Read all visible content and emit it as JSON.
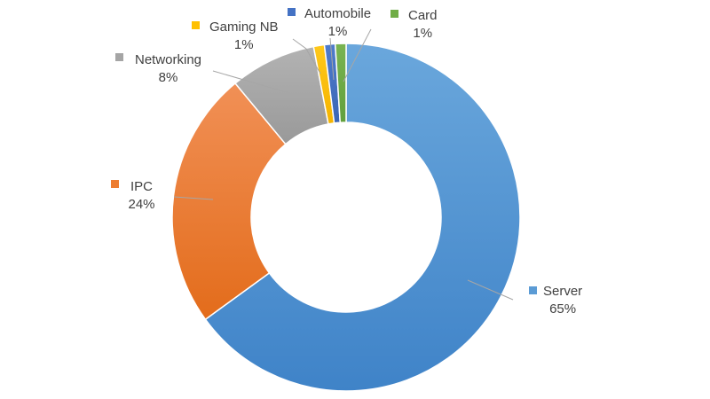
{
  "chart_data": {
    "type": "pie",
    "donut": true,
    "title": "",
    "legend": "none",
    "slices": [
      {
        "label": "Server",
        "value": 65,
        "display": "65%",
        "color": "#5b9bd5"
      },
      {
        "label": "IPC",
        "value": 24,
        "display": "24%",
        "color": "#ed7d31"
      },
      {
        "label": "Networking",
        "value": 8,
        "display": "8%",
        "color": "#a5a5a5"
      },
      {
        "label": "Gaming NB",
        "value": 1,
        "display": "1%",
        "color": "#ffc000"
      },
      {
        "label": "Automobile",
        "value": 1,
        "display": "1%",
        "color": "#4472c4"
      },
      {
        "label": "Card",
        "value": 1,
        "display": "1%",
        "color": "#70ad47"
      }
    ]
  }
}
